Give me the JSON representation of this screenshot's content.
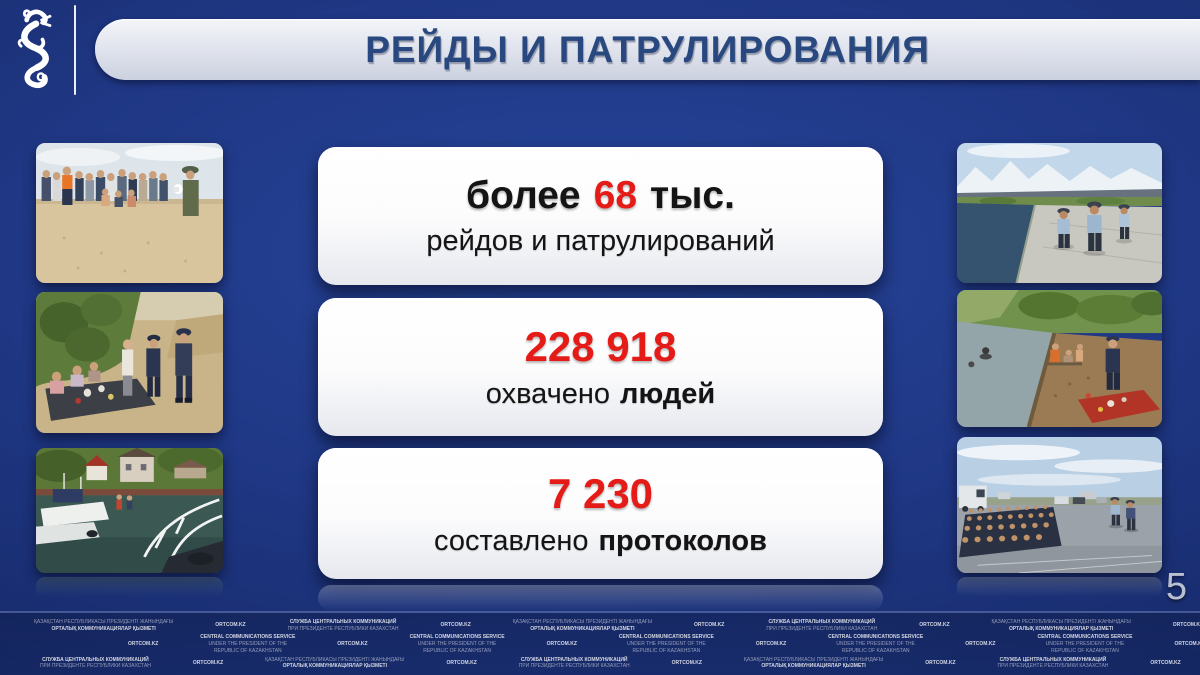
{
  "slide": {
    "title": "РЕЙДЫ И ПАТРУЛИРОВАНИЯ",
    "page_number": "5"
  },
  "cards": [
    {
      "prefix": "более",
      "value": "68",
      "suffix": "тыс.",
      "line2_regular": "рейдов и патрулирований",
      "line2_bold": ""
    },
    {
      "prefix": "",
      "value": "228 918",
      "suffix": "",
      "line2_regular": "охвачено",
      "line2_bold": "людей"
    },
    {
      "prefix": "",
      "value": "7 230",
      "suffix": "",
      "line2_regular": "составлено",
      "line2_bold": "протоколов"
    }
  ],
  "watermark": {
    "blocks": {
      "kaz": {
        "lines": [
          "ҚАЗАҚСТАН РЕСПУБЛИКАСЫ ПРЕЗИДЕНТІ ЖАНЫНДАҒЫ",
          "ОРТАЛЫҚ КОММУНИКАЦИЯЛАР ҚЫЗМЕТІ"
        ],
        "bold_line": 1
      },
      "rus": {
        "lines": [
          "СЛУЖБА ЦЕНТРАЛЬНЫХ КОММУНИКАЦИЙ",
          "ПРИ ПРЕЗИДЕНТЕ РЕСПУБЛИКИ КАЗАХСТАН"
        ],
        "bold_line": 0
      },
      "eng": {
        "lines": [
          "CENTRAL COMMUNICATIONS SERVICE",
          "UNDER THE PRESIDENT OF THE",
          "REPUBLIC OF KAZAKHSTAN"
        ],
        "bold_line": 0
      },
      "ortcom": {
        "lines": [
          "ORTCOM.KZ"
        ],
        "bold_line": 0
      }
    },
    "rows": [
      {
        "sequence": [
          "kaz",
          "ortcom",
          "rus",
          "ortcom"
        ],
        "repeat": 3
      },
      {
        "sequence": [
          "ortcom",
          "eng"
        ],
        "repeat": 6
      },
      {
        "sequence": [
          "rus",
          "ortcom",
          "kaz",
          "ortcom"
        ],
        "repeat": 3
      }
    ]
  },
  "colors": {
    "background_navy": "#1f3784",
    "accent_red": "#e51b18",
    "title_blue": "#28487f",
    "card_white": "#ffffff",
    "watermark_white": "#ffffff"
  }
}
